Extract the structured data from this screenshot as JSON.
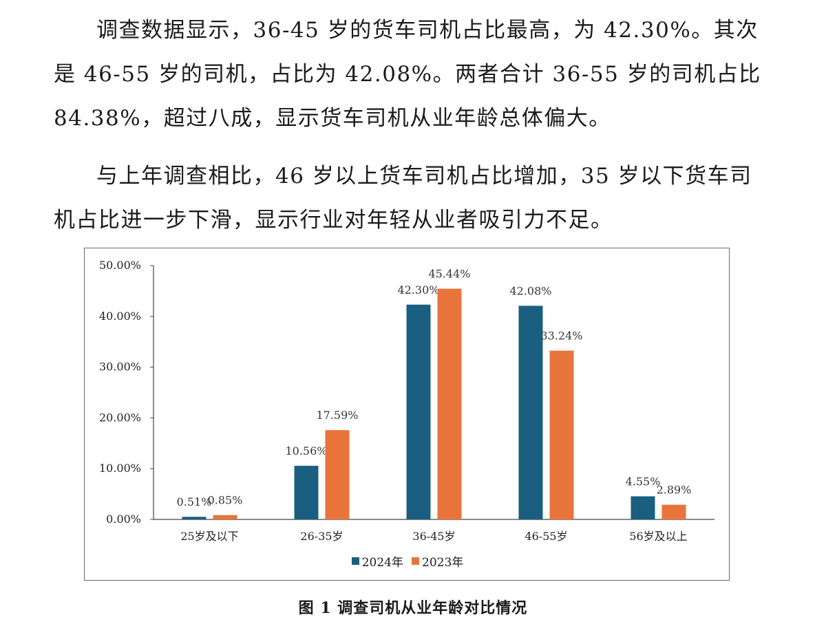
{
  "text": {
    "para1": "调查数据显示，36-45 岁的货车司机占比最高，为 42.30%。其次是 46-55 岁的司机，占比为 42.08%。两者合计 36-55 岁的司机占比 84.38%，超过八成，显示货车司机从业年龄总体偏大。",
    "para2": "与上年调查相比，46 岁以上货车司机占比增加，35 岁以下货车司机占比进一步下滑，显示行业对年轻从业者吸引力不足。"
  },
  "caption": "图 1  调查司机从业年龄对比情况",
  "colors": {
    "s2024": "#1b5f80",
    "s2023": "#e8743b",
    "axis": "#444444"
  },
  "chart_data": {
    "type": "bar",
    "categories": [
      "25岁及以下",
      "26-35岁",
      "36-45岁",
      "46-55岁",
      "56岁及以上"
    ],
    "series": [
      {
        "name": "2024年",
        "values": [
          0.51,
          10.56,
          42.3,
          42.08,
          4.55
        ],
        "labels": [
          "0.51%",
          "10.56%",
          "42.30%",
          "42.08%",
          "4.55%"
        ]
      },
      {
        "name": "2023年",
        "values": [
          0.85,
          17.59,
          45.44,
          33.24,
          2.89
        ],
        "labels": [
          "0.85%",
          "17.59%",
          "45.44%",
          "33.24%",
          "2.89%"
        ]
      }
    ],
    "yticks": [
      "0.00%",
      "10.00%",
      "20.00%",
      "30.00%",
      "40.00%",
      "50.00%"
    ],
    "ylim": [
      0,
      50
    ],
    "legend": "bottom",
    "grid": false
  }
}
